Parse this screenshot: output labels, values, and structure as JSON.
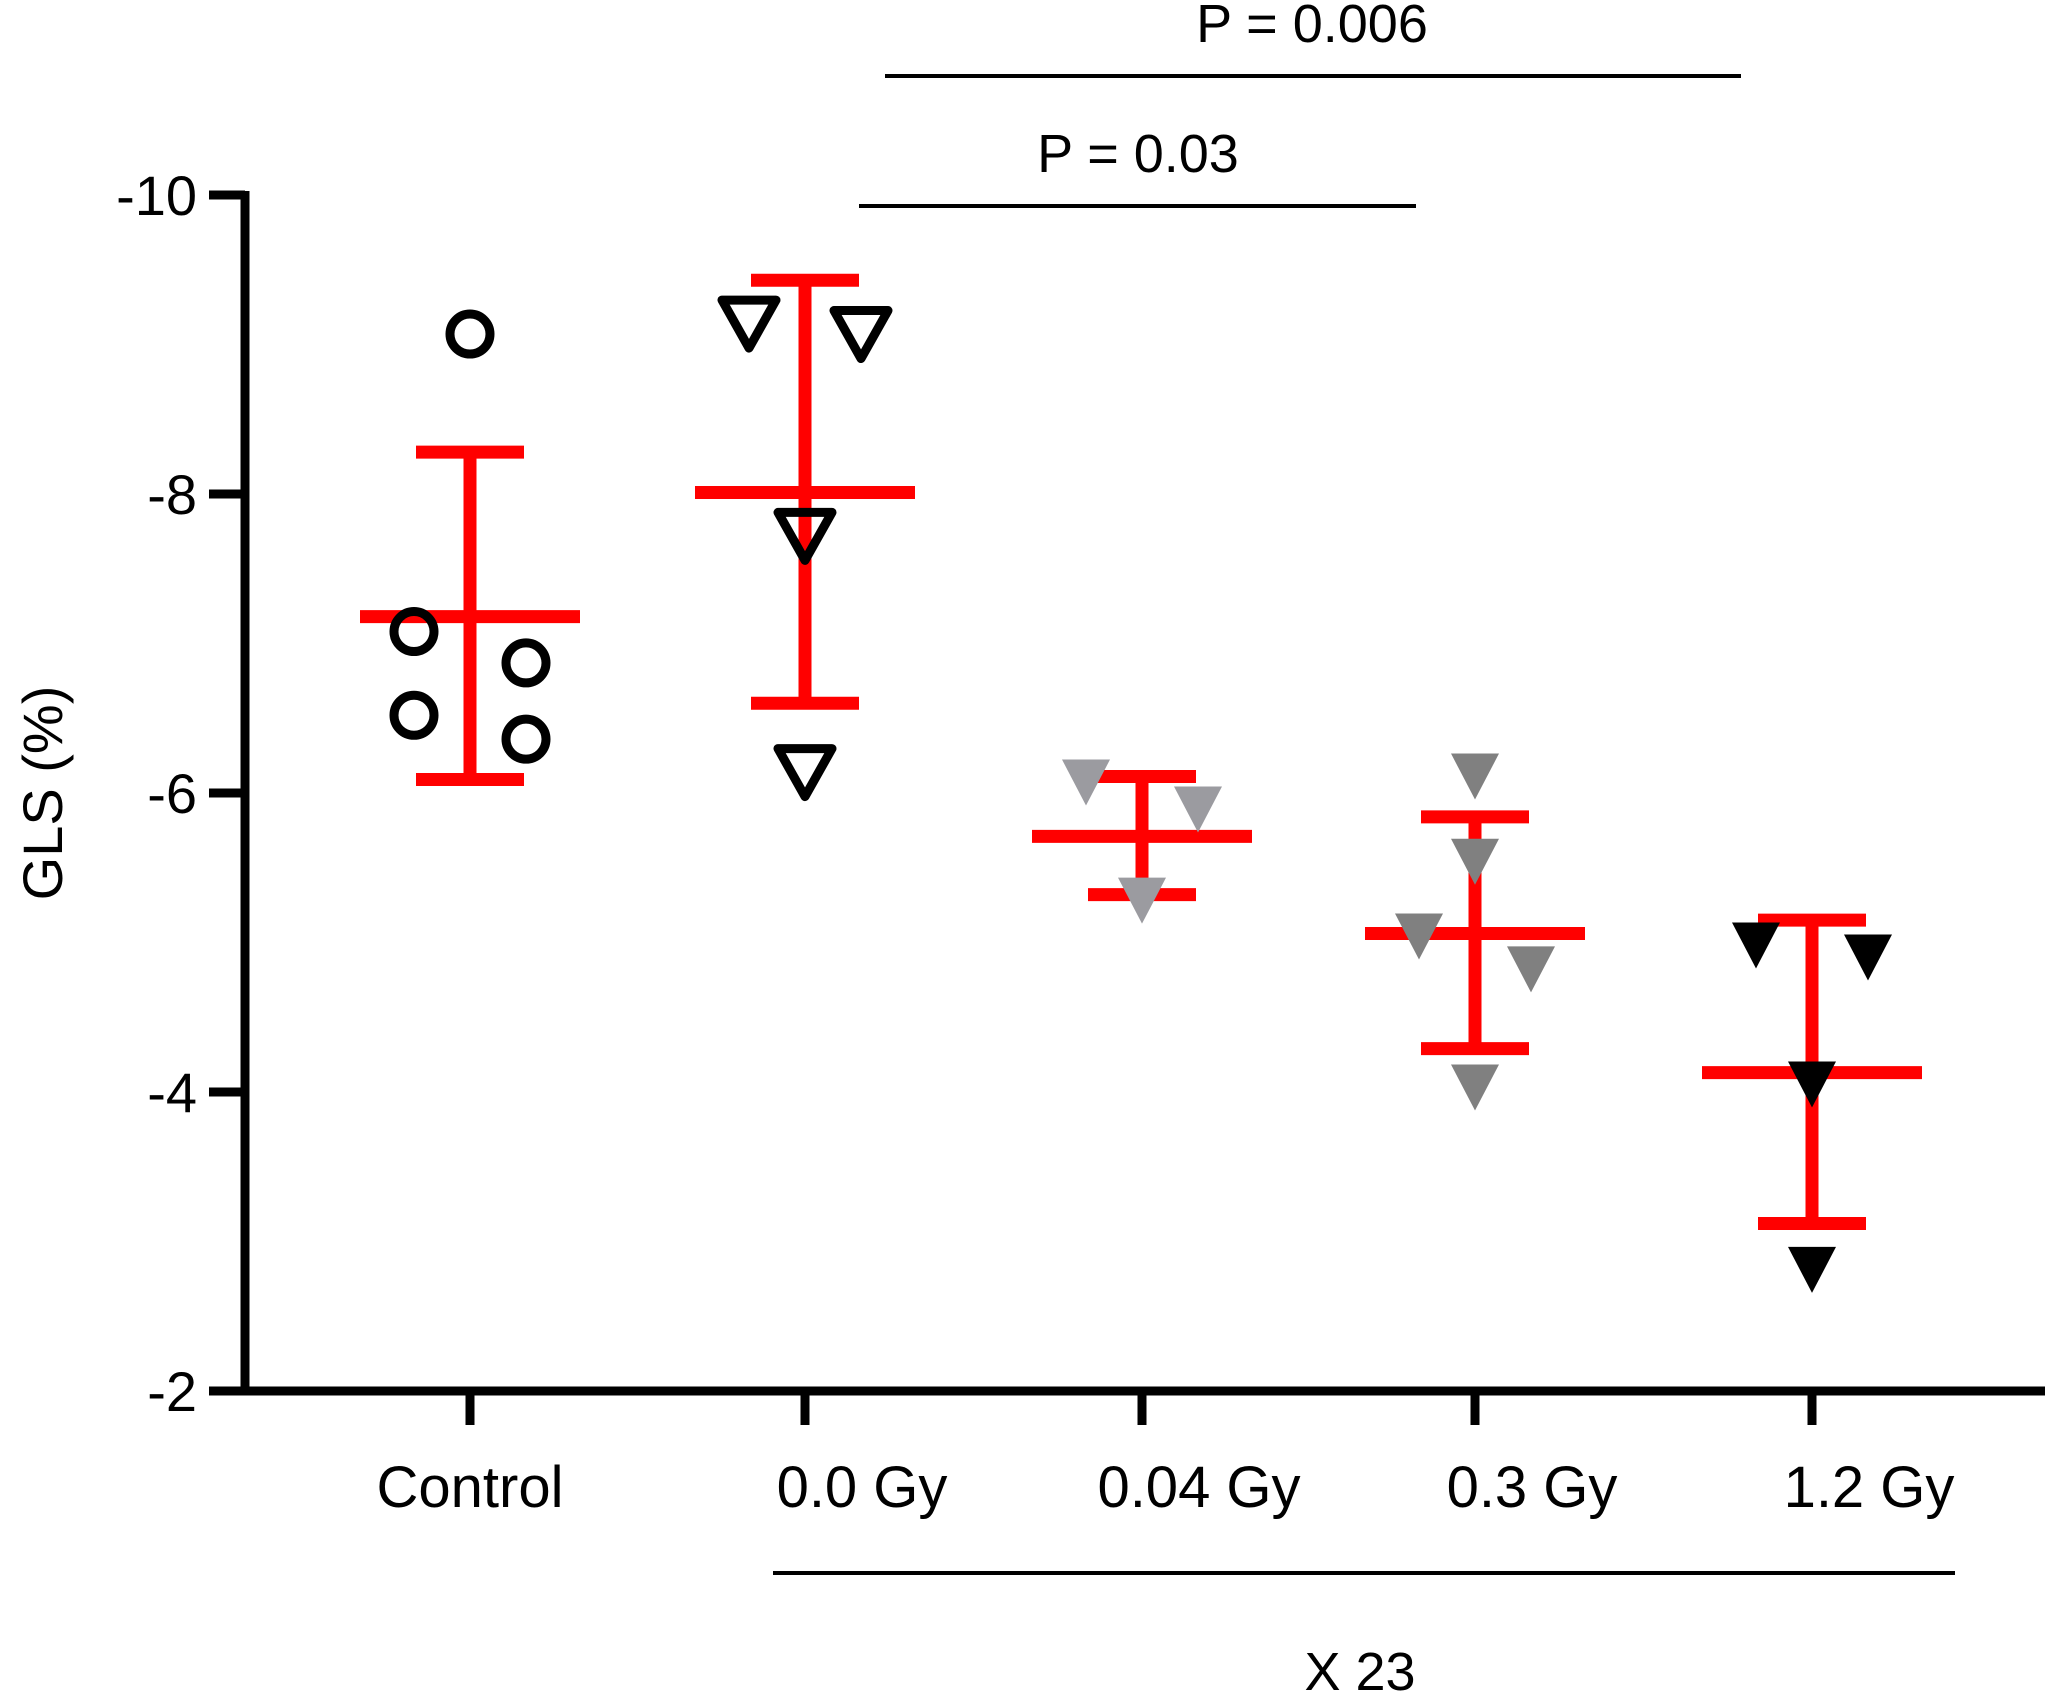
{
  "chart_data": {
    "type": "scatter",
    "title": "",
    "xlabel": "",
    "ylabel": "GLS (%)",
    "ylim": [
      -10,
      -2
    ],
    "y_inverted": true,
    "y_ticks": [
      -10,
      -8,
      -6,
      -4,
      -2
    ],
    "categories": [
      "Control",
      "0.0 Gy",
      "0.04 Gy",
      "0.3 Gy",
      "1.2 Gy"
    ],
    "group_bracket": {
      "label": "X 23",
      "spans": [
        "0.0 Gy",
        "1.2 Gy"
      ]
    },
    "error_bar_color": "#ff0000",
    "series": [
      {
        "name": "Control",
        "marker": "open-circle",
        "color": "#000000",
        "values": [
          -9.07,
          -7.08,
          -6.87,
          -6.52,
          -6.36
        ],
        "offsets": [
          0,
          -1,
          1,
          -1,
          1
        ],
        "mean": -7.18,
        "err_low": -6.09,
        "err_high": -8.28
      },
      {
        "name": "0.0 Gy",
        "marker": "open-triangle-down",
        "color": "#000000",
        "values": [
          -9.15,
          -9.08,
          -7.73,
          -6.15
        ],
        "offsets": [
          -1,
          1,
          0,
          0
        ],
        "mean": -8.01,
        "err_low": -6.6,
        "err_high": -9.43
      },
      {
        "name": "0.04 Gy",
        "marker": "filled-triangle-down",
        "color": "#9b9ba0",
        "values": [
          -6.07,
          -5.89,
          -5.28
        ],
        "offsets": [
          -1,
          1,
          0
        ],
        "mean": -5.71,
        "err_low": -5.32,
        "err_high": -6.11
      },
      {
        "name": "0.3 Gy",
        "marker": "filled-triangle-down",
        "color": "#808080",
        "values": [
          -6.11,
          -5.54,
          -5.04,
          -4.82,
          -4.03
        ],
        "offsets": [
          0,
          0,
          -1,
          1,
          0
        ],
        "mean": -5.06,
        "err_low": -4.29,
        "err_high": -5.84
      },
      {
        "name": "1.2 Gy",
        "marker": "filled-triangle-down",
        "color": "#000000",
        "values": [
          -4.98,
          -4.9,
          -4.05,
          -2.81
        ],
        "offsets": [
          -1,
          1,
          0,
          0
        ],
        "mean": -4.13,
        "err_low": -3.12,
        "err_high": -5.15
      }
    ],
    "annotations": [
      {
        "text": "P = 0.006",
        "from": "0.0 Gy",
        "to": "1.2 Gy"
      },
      {
        "text": "P = 0.03",
        "from": "0.0 Gy",
        "to": "0.3 Gy"
      }
    ],
    "grid": false,
    "legend": "none"
  }
}
